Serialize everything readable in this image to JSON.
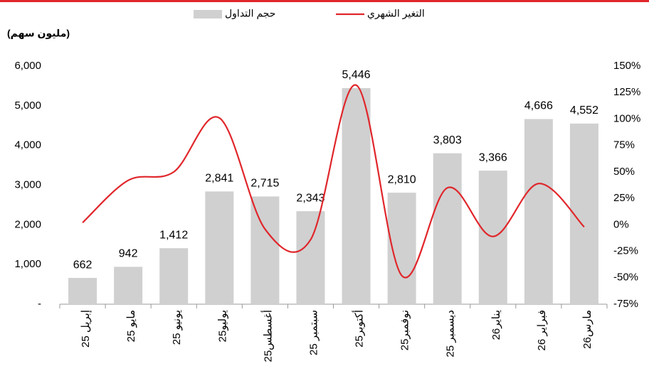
{
  "chart_data": {
    "type": "bar",
    "y_label": "(مليون سهم)",
    "categories": [
      "إبريل 25",
      "مايو 25",
      "يونيو 25",
      "يوليو25",
      "أغسطس25",
      "سبتمبر 25",
      "أكتوبر25",
      "نوفمبر25",
      "ديسمبر 25",
      "يناير26",
      "فبراير 26",
      "مارس26"
    ],
    "series": [
      {
        "name": "حجم التداول",
        "type": "bar",
        "color": "#d0d0d0",
        "values": [
          662,
          942,
          1412,
          2841,
          2715,
          2343,
          5446,
          2810,
          3803,
          3366,
          4666,
          4552
        ],
        "value_labels": [
          "662",
          "942",
          "1,412",
          "2,841",
          "2,715",
          "2,343",
          "5,446",
          "2,810",
          "3,803",
          "3,366",
          "4,666",
          "4,552"
        ]
      },
      {
        "name": "التغير الشهري",
        "type": "line",
        "axis": "y2",
        "color": "#e0262b",
        "values": [
          2,
          42,
          50,
          101,
          -4,
          -14,
          132,
          -48,
          35,
          -11,
          39,
          -2
        ]
      }
    ],
    "ylim": [
      0,
      6000
    ],
    "yticks": [
      {
        "value": 0,
        "label": "-"
      },
      {
        "value": 1000,
        "label": "1,000"
      },
      {
        "value": 2000,
        "label": "2,000"
      },
      {
        "value": 3000,
        "label": "3,000"
      },
      {
        "value": 4000,
        "label": "4,000"
      },
      {
        "value": 5000,
        "label": "5,000"
      },
      {
        "value": 6000,
        "label": "6,000"
      }
    ],
    "y2lim": [
      -75,
      150
    ],
    "y2ticks": [
      {
        "value": -75,
        "label": "-75%"
      },
      {
        "value": -50,
        "label": "-50%"
      },
      {
        "value": -25,
        "label": "-25%"
      },
      {
        "value": 0,
        "label": "0%"
      },
      {
        "value": 25,
        "label": "25%"
      },
      {
        "value": 50,
        "label": "50%"
      },
      {
        "value": 75,
        "label": "75%"
      },
      {
        "value": 100,
        "label": "100%"
      },
      {
        "value": 125,
        "label": "125%"
      },
      {
        "value": 150,
        "label": "150%"
      }
    ],
    "legend": "top"
  }
}
